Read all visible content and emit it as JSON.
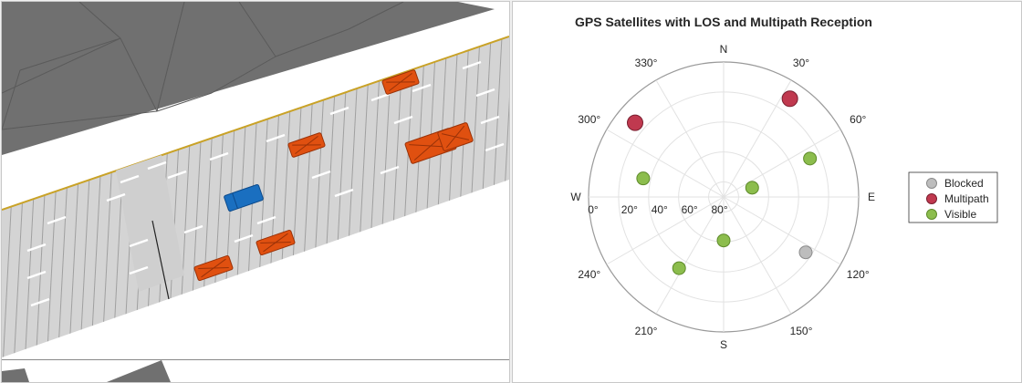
{
  "chart_data": {
    "type": "scatter",
    "subtype": "polar-skyplot",
    "title": "GPS Satellites with LOS and Multipath Reception",
    "compass": {
      "N": "N",
      "E": "E",
      "S": "S",
      "W": "W"
    },
    "azimuth_ticks": [
      {
        "deg": 30,
        "label": "30°"
      },
      {
        "deg": 60,
        "label": "60°"
      },
      {
        "deg": 120,
        "label": "120°"
      },
      {
        "deg": 150,
        "label": "150°"
      },
      {
        "deg": 210,
        "label": "210°"
      },
      {
        "deg": 240,
        "label": "240°"
      },
      {
        "deg": 300,
        "label": "300°"
      },
      {
        "deg": 330,
        "label": "330°"
      }
    ],
    "elevation_ticks": [
      {
        "deg": 0,
        "label": "0°"
      },
      {
        "deg": 20,
        "label": "20°"
      },
      {
        "deg": 40,
        "label": "40°"
      },
      {
        "deg": 60,
        "label": "60°"
      },
      {
        "deg": 80,
        "label": "80°"
      }
    ],
    "elevation_range": [
      0,
      90
    ],
    "grid": true,
    "legend_position": "right",
    "series": [
      {
        "name": "Blocked",
        "color": "#bdbdbd",
        "edge": "#8a8a8a",
        "points": [
          {
            "azimuth": 124,
            "elevation": 24
          }
        ]
      },
      {
        "name": "Multipath",
        "color": "#c0394f",
        "edge": "#7a1f30",
        "points": [
          {
            "azimuth": 34,
            "elevation": 11
          },
          {
            "azimuth": 310,
            "elevation": 13
          }
        ]
      },
      {
        "name": "Visible",
        "color": "#8cbd4d",
        "edge": "#5e8a2a",
        "points": [
          {
            "azimuth": 66,
            "elevation": 27
          },
          {
            "azimuth": 72,
            "elevation": 70
          },
          {
            "azimuth": 283,
            "elevation": 35
          },
          {
            "azimuth": 180,
            "elevation": 61
          },
          {
            "azimuth": 212,
            "elevation": 34
          }
        ]
      }
    ]
  },
  "scene": {
    "ground_color": "#d4d4d4",
    "building_color": "#707070",
    "ego_vehicle_color": "#1a6fc0",
    "other_vehicle_color": "#e05010"
  }
}
